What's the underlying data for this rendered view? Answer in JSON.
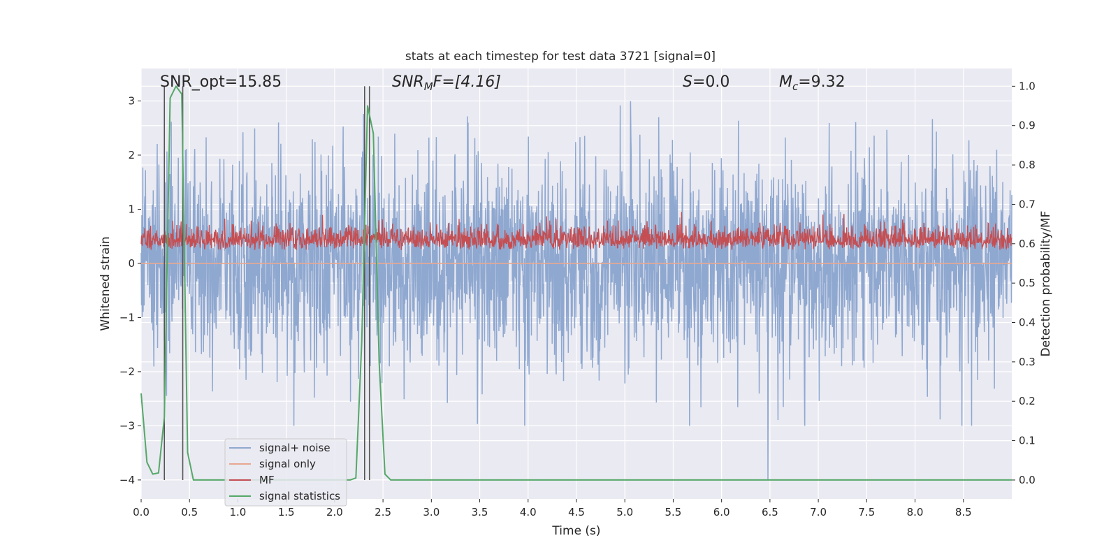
{
  "chart_data": {
    "type": "line",
    "title": "stats at each timestep for test data 3721 [signal=0]",
    "xlabel": "Time (s)",
    "ylabel": "Whitened strain",
    "ylabel_right": "Detection probability/MF",
    "xlim": [
      0.0,
      9.0
    ],
    "ylim": [
      -4.35,
      3.6
    ],
    "ylim_right": [
      -0.048,
      1.045
    ],
    "xticks": [
      "0.0",
      "0.5",
      "1.0",
      "1.5",
      "2.0",
      "2.5",
      "3.0",
      "3.5",
      "4.0",
      "4.5",
      "5.0",
      "5.5",
      "6.0",
      "6.5",
      "7.0",
      "7.5",
      "8.0",
      "8.5"
    ],
    "yticks": [
      "−4",
      "−3",
      "−2",
      "−1",
      "0",
      "1",
      "2",
      "3"
    ],
    "yticks_right": [
      "0.0",
      "0.1",
      "0.2",
      "0.3",
      "0.4",
      "0.5",
      "0.6",
      "0.7",
      "0.8",
      "0.9",
      "1.0"
    ],
    "annotations": {
      "snr_opt": "SNR_opt=15.85",
      "snr_mf_main": "SNR",
      "snr_mf_sub": "M",
      "snr_mf_rest": "F=[4.16]",
      "s_main": "S",
      "s_rest": "=0.0",
      "mc_main": "M",
      "mc_sub": "c",
      "mc_rest": "=9.32"
    },
    "legend": {
      "placement": "lower-left",
      "entries": [
        {
          "label": "signal+ noise",
          "color": "#8fa8d0"
        },
        {
          "label": "signal only",
          "color": "#e8a890"
        },
        {
          "label": "MF",
          "color": "#c44e52"
        },
        {
          "label": "signal statistics",
          "color": "#55a868"
        }
      ]
    },
    "series": [
      {
        "name": "signal+ noise",
        "color": "#8fa8d0",
        "description": "Gaussian whitened strain noise, envelope approx ±2 with excursions to about ±3; one spike down to -4.0 at t≈6.48",
        "approx_range": [
          -4.0,
          3.2
        ],
        "outlier": {
          "x": 6.48,
          "y": -4.0
        }
      },
      {
        "name": "signal only",
        "color": "#e8a890",
        "x": [
          0.0,
          9.0
        ],
        "y": [
          0.0,
          0.0
        ]
      },
      {
        "name": "MF",
        "color": "#c44e52",
        "axis": "right",
        "description": "Matched filter output fluctuating between about 0.57 and 0.70 on the right axis",
        "approx_range_right": [
          0.57,
          0.705
        ]
      },
      {
        "name": "signal statistics",
        "color": "#55a868",
        "axis": "right",
        "x": [
          0.0,
          0.06,
          0.12,
          0.18,
          0.24,
          0.3,
          0.36,
          0.42,
          0.48,
          0.54,
          0.6,
          0.66,
          0.72,
          0.78,
          2.1,
          2.16,
          2.22,
          2.28,
          2.34,
          2.4,
          2.46,
          2.52,
          2.58,
          2.64,
          2.7,
          9.0
        ],
        "y": [
          0.22,
          0.045,
          0.015,
          0.018,
          0.16,
          0.97,
          1.0,
          0.98,
          0.07,
          0.0,
          0.0,
          0.0,
          0.0,
          0.0,
          0.0,
          0.0,
          0.005,
          0.35,
          0.95,
          0.88,
          0.3,
          0.015,
          0.0,
          0.0,
          0.0,
          0.0
        ]
      }
    ],
    "vertical_lines": {
      "color": "#555555",
      "x": [
        0.24,
        0.43,
        2.31,
        2.36
      ],
      "top_right": 1.0,
      "bottom_right": 0.0
    }
  }
}
